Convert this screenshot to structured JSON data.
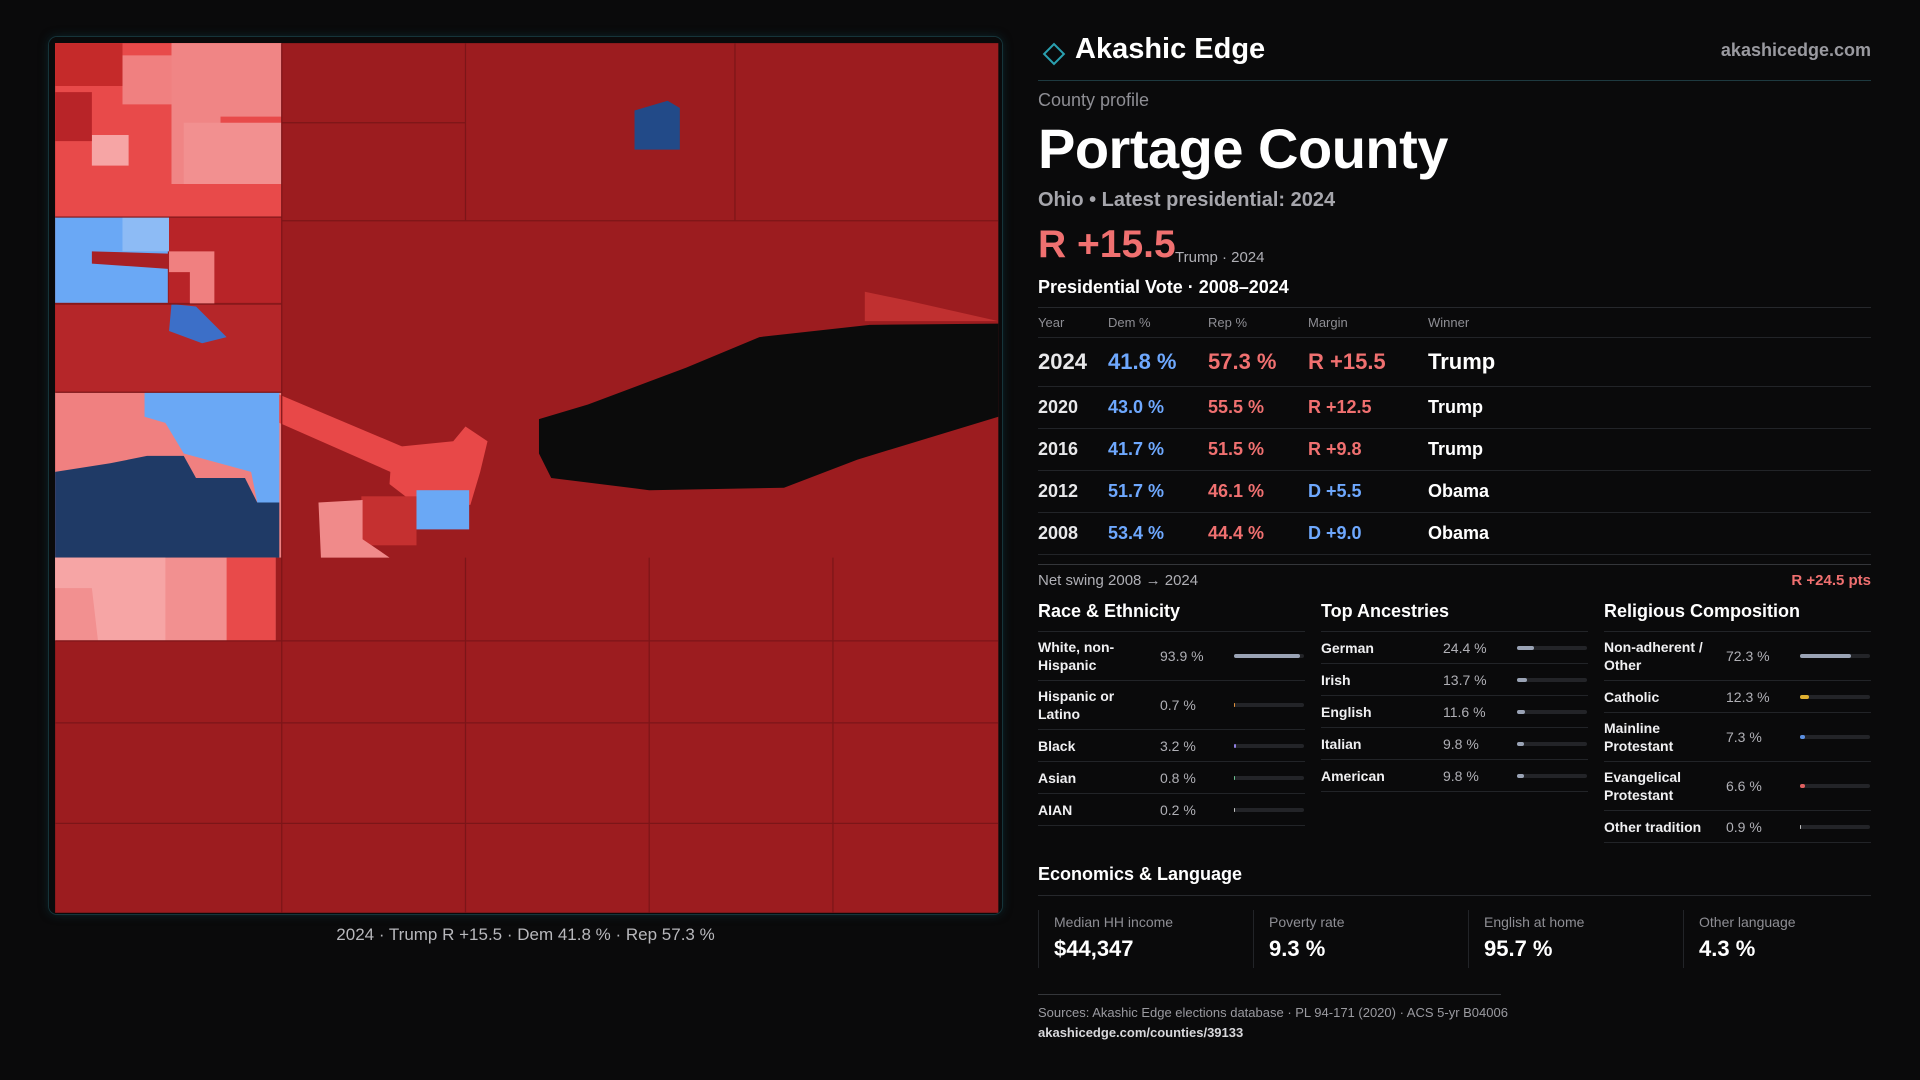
{
  "header": {
    "brand": "Akashic Edge",
    "site": "akashicedge.com"
  },
  "map": {
    "caption": "2024 · Trump R +15.5 · Dem 41.8 % · Rep 57.3 %"
  },
  "profile": {
    "kicker": "County profile",
    "title": "Portage County",
    "subtitle": "Ohio • Latest presidential: 2024",
    "margin": "R +15.5",
    "margin_note": "Trump · 2024"
  },
  "votes": {
    "title": "Presidential Vote · 2008–2024",
    "columns": [
      "Year",
      "Dem %",
      "Rep %",
      "Margin",
      "Winner"
    ],
    "rows": [
      [
        "2024",
        "41.8 %",
        "57.3 %",
        "R +15.5",
        "Trump"
      ],
      [
        "2020",
        "43.0 %",
        "55.5 %",
        "R +12.5",
        "Trump"
      ],
      [
        "2016",
        "41.7 %",
        "51.5 %",
        "R +9.8",
        "Trump"
      ],
      [
        "2012",
        "51.7 %",
        "46.1 %",
        "D +5.5",
        "Obama"
      ],
      [
        "2008",
        "53.4 %",
        "44.4 %",
        "D +9.0",
        "Obama"
      ]
    ],
    "swing_label": "Net swing 2008 → 2024",
    "swing_value": "R +24.5 pts"
  },
  "race": {
    "title": "Race & Ethnicity",
    "rows": [
      {
        "name": "White, non-Hispanic",
        "value": 93.9,
        "value_label": "93.9 %",
        "color": "#9aa3b5"
      },
      {
        "name": "Hispanic or Latino",
        "value": 0.7,
        "value_label": "0.7 %",
        "color": "#e0903a"
      },
      {
        "name": "Black",
        "value": 3.2,
        "value_label": "3.2 %",
        "color": "#8f7fe0"
      },
      {
        "name": "Asian",
        "value": 0.8,
        "value_label": "0.8 %",
        "color": "#6cc090"
      },
      {
        "name": "AIAN",
        "value": 0.2,
        "value_label": "0.2 %",
        "color": "#c0c0c0"
      }
    ]
  },
  "ancestry": {
    "title": "Top Ancestries",
    "rows": [
      {
        "name": "German",
        "value": 24.4,
        "value_label": "24.4 %",
        "color": "#9aa3b5"
      },
      {
        "name": "Irish",
        "value": 13.7,
        "value_label": "13.7 %",
        "color": "#9aa3b5"
      },
      {
        "name": "English",
        "value": 11.6,
        "value_label": "11.6 %",
        "color": "#9aa3b5"
      },
      {
        "name": "Italian",
        "value": 9.8,
        "value_label": "9.8 %",
        "color": "#9aa3b5"
      },
      {
        "name": "American",
        "value": 9.8,
        "value_label": "9.8 %",
        "color": "#9aa3b5"
      }
    ]
  },
  "religion": {
    "title": "Religious Composition",
    "rows": [
      {
        "name": "Non-adherent / Other",
        "value": 72.3,
        "value_label": "72.3 %",
        "color": "#9aa3b5"
      },
      {
        "name": "Catholic",
        "value": 12.3,
        "value_label": "12.3 %",
        "color": "#e0b030"
      },
      {
        "name": "Mainline Protestant",
        "value": 7.3,
        "value_label": "7.3 %",
        "color": "#5b8fe0"
      },
      {
        "name": "Evangelical Protestant",
        "value": 6.6,
        "value_label": "6.6 %",
        "color": "#e06060"
      },
      {
        "name": "Other tradition",
        "value": 0.9,
        "value_label": "0.9 %",
        "color": "#c0c0c0"
      }
    ]
  },
  "economics": {
    "title": "Economics & Language",
    "cards": [
      {
        "label": "Median HH income",
        "value": "$44,347"
      },
      {
        "label": "Poverty rate",
        "value": "9.3 %"
      },
      {
        "label": "English at home",
        "value": "95.7 %"
      },
      {
        "label": "Other language",
        "value": "4.3 %"
      }
    ]
  },
  "footer": {
    "sources": "Sources: Akashic Edge elections database · PL 94-171 (2020) · ACS 5-yr B04006",
    "url": "akashicedge.com/counties/39133"
  }
}
